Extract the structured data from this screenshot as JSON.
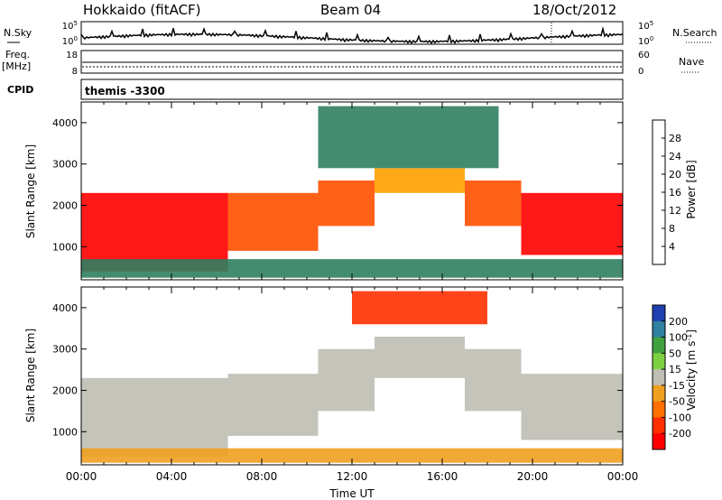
{
  "header": {
    "station": "Hokkaido (fitACF)",
    "beam": "Beam 04",
    "date": "18/Oct/2012"
  },
  "panels": {
    "nsky": {
      "label": "N.Sky",
      "yticks_left": [
        "10^5",
        "10^0"
      ],
      "yticks_right": [
        "10^5",
        "10^0"
      ],
      "right_label": "N.Search"
    },
    "freq": {
      "label_line1": "Freq.",
      "label_line2": "[MHz]",
      "yticks_left": [
        "18",
        "8"
      ],
      "yticks_right": [
        "60",
        "0"
      ],
      "right_label": "Nave"
    },
    "cpid": {
      "label": "CPID",
      "program": "themis  -3300"
    }
  },
  "chart_data": [
    {
      "type": "heatmap",
      "name": "power",
      "ylabel": "Slant Range [km]",
      "xlabel": "",
      "ylim": [
        200,
        4500
      ],
      "yticks": [
        1000,
        2000,
        3000,
        4000
      ],
      "colorbar": {
        "label": "Power [dB]",
        "range": [
          0,
          32
        ],
        "ticks": [
          4,
          8,
          12,
          16,
          20,
          24,
          28
        ],
        "colors": [
          "#0000ff",
          "#3060c0",
          "#308060",
          "#55a060",
          "#8cc040",
          "#ffa000",
          "#ff5000",
          "#ff0000"
        ]
      },
      "bands": [
        {
          "t_start": 0.0,
          "t_end": 6.5,
          "r_low": 400,
          "r_high": 2300,
          "value": 28
        },
        {
          "t_start": 6.5,
          "t_end": 10.5,
          "r_low": 900,
          "r_high": 2300,
          "value": 27
        },
        {
          "t_start": 10.5,
          "t_end": 13.0,
          "r_low": 1500,
          "r_high": 2600,
          "value": 24
        },
        {
          "t_start": 13.0,
          "t_end": 17.0,
          "r_low": 2300,
          "r_high": 2900,
          "value": 20
        },
        {
          "t_start": 17.0,
          "t_end": 19.5,
          "r_low": 1500,
          "r_high": 2600,
          "value": 26
        },
        {
          "t_start": 19.5,
          "t_end": 24.0,
          "r_low": 800,
          "r_high": 2300,
          "value": 28
        },
        {
          "t_start": 10.5,
          "t_end": 18.5,
          "r_low": 2900,
          "r_high": 4400,
          "value": 8
        },
        {
          "t_start": 0.0,
          "t_end": 24.0,
          "r_low": 250,
          "r_high": 700,
          "value": 9
        }
      ]
    },
    {
      "type": "heatmap",
      "name": "velocity",
      "ylabel": "Slant Range [km]",
      "xlabel": "Time UT",
      "ylim": [
        200,
        4500
      ],
      "yticks": [
        1000,
        2000,
        3000,
        4000
      ],
      "xticks": [
        "00:00",
        "04:00",
        "08:00",
        "12:00",
        "16:00",
        "20:00",
        "00:00"
      ],
      "colorbar": {
        "label": "Velocity [m s^-1]",
        "ticks": [
          "200",
          "100",
          "50",
          "15",
          "-15",
          "-50",
          "-100",
          "-200"
        ],
        "colors": [
          "#2040b0",
          "#3080a0",
          "#40a040",
          "#7fd040",
          "#bebeb4",
          "#f0a020",
          "#ff7000",
          "#ff3000",
          "#ff0000"
        ]
      },
      "bands": [
        {
          "t_start": 0.0,
          "t_end": 6.5,
          "r_low": 400,
          "r_high": 2300,
          "value": 0
        },
        {
          "t_start": 6.5,
          "t_end": 10.5,
          "r_low": 900,
          "r_high": 2400,
          "value": 0
        },
        {
          "t_start": 10.5,
          "t_end": 13.0,
          "r_low": 1500,
          "r_high": 3000,
          "value": 0
        },
        {
          "t_start": 13.0,
          "t_end": 17.0,
          "r_low": 2300,
          "r_high": 3300,
          "value": 0
        },
        {
          "t_start": 17.0,
          "t_end": 19.5,
          "r_low": 1500,
          "r_high": 3000,
          "value": 0
        },
        {
          "t_start": 19.5,
          "t_end": 24.0,
          "r_low": 800,
          "r_high": 2400,
          "value": 0
        },
        {
          "t_start": 12.0,
          "t_end": 18.0,
          "r_low": 3600,
          "r_high": 4400,
          "value": -200
        },
        {
          "t_start": 0.0,
          "t_end": 24.0,
          "r_low": 250,
          "r_high": 600,
          "value": -40
        }
      ]
    }
  ]
}
